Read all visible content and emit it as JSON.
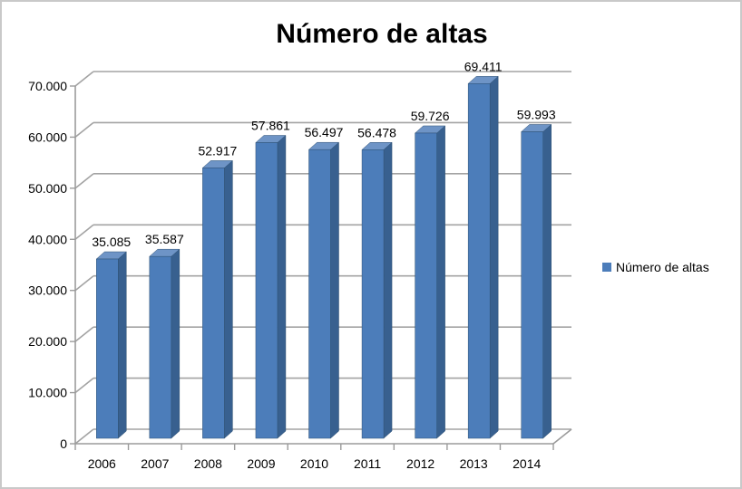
{
  "chart_data": {
    "type": "bar",
    "subtype": "3d-clustered-column",
    "title": "Número de altas",
    "categories": [
      "2006",
      "2007",
      "2008",
      "2009",
      "2010",
      "2011",
      "2012",
      "2013",
      "2014"
    ],
    "series": [
      {
        "name": "Número de altas",
        "values": [
          35085,
          35587,
          52917,
          57861,
          56497,
          56478,
          59726,
          69411,
          59993
        ]
      }
    ],
    "data_labels": [
      "35.085",
      "35.587",
      "52.917",
      "57.861",
      "56.497",
      "56.478",
      "59.726",
      "69.411",
      "59.993"
    ],
    "xlabel": "",
    "ylabel": "",
    "ylim": [
      0,
      70000
    ],
    "y_tick_step": 10000,
    "y_tick_labels": [
      "0",
      "10.000",
      "20.000",
      "30.000",
      "40.000",
      "50.000",
      "60.000",
      "70.000"
    ],
    "grid": true,
    "legend_position": "right-middle",
    "colors": {
      "bar_front": "#4C7DBA",
      "bar_side": "#38608F",
      "bar_top": "#6E94C6",
      "bar_edge": "#2F5173",
      "gridline": "#A3A3A3",
      "axis": "#9B9B9B",
      "text": "#000000",
      "background": "#FFFFFF",
      "border": "#C9C9C9"
    }
  }
}
